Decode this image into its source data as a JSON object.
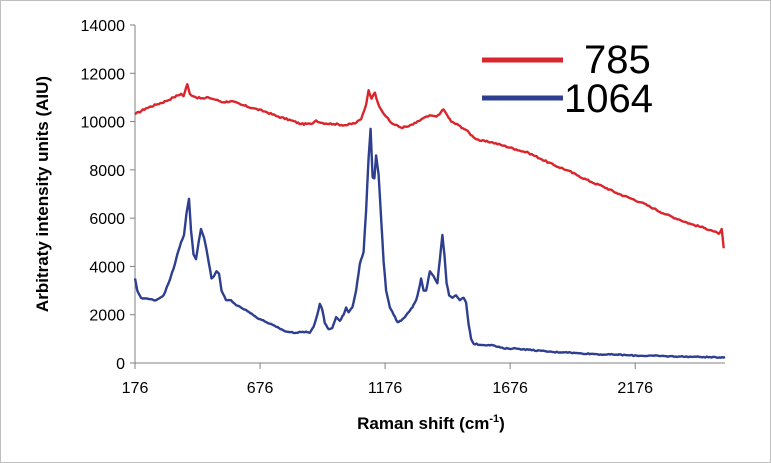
{
  "chart_data": {
    "type": "line",
    "xlabel": "Raman shift (cm",
    "xlabel_sup": "-1",
    "xlabel_suffix": ")",
    "ylabel": "Arbitraty intensity units (AIU)",
    "xlim": [
      176,
      2535
    ],
    "ylim": [
      0,
      14000
    ],
    "x_ticks": [
      176,
      676,
      1176,
      1676,
      2176
    ],
    "y_ticks": [
      0,
      2000,
      4000,
      6000,
      8000,
      10000,
      12000,
      14000
    ],
    "legend_position": "top-right",
    "series": [
      {
        "name": "785",
        "color": "#d9262c",
        "points": [
          [
            176,
            10300
          ],
          [
            220,
            10550
          ],
          [
            260,
            10700
          ],
          [
            300,
            10850
          ],
          [
            330,
            11000
          ],
          [
            360,
            11150
          ],
          [
            370,
            11050
          ],
          [
            385,
            11550
          ],
          [
            395,
            11150
          ],
          [
            420,
            11000
          ],
          [
            450,
            10950
          ],
          [
            470,
            11000
          ],
          [
            500,
            10900
          ],
          [
            530,
            10800
          ],
          [
            560,
            10850
          ],
          [
            600,
            10700
          ],
          [
            650,
            10550
          ],
          [
            700,
            10400
          ],
          [
            750,
            10200
          ],
          [
            800,
            10050
          ],
          [
            840,
            9900
          ],
          [
            880,
            9900
          ],
          [
            900,
            10050
          ],
          [
            920,
            9950
          ],
          [
            970,
            9900
          ],
          [
            1020,
            9850
          ],
          [
            1060,
            9950
          ],
          [
            1080,
            10100
          ],
          [
            1100,
            10700
          ],
          [
            1110,
            11300
          ],
          [
            1122,
            10950
          ],
          [
            1135,
            11200
          ],
          [
            1148,
            10750
          ],
          [
            1160,
            10500
          ],
          [
            1180,
            10200
          ],
          [
            1200,
            9950
          ],
          [
            1240,
            9750
          ],
          [
            1270,
            9800
          ],
          [
            1300,
            9950
          ],
          [
            1330,
            10150
          ],
          [
            1360,
            10250
          ],
          [
            1380,
            10200
          ],
          [
            1400,
            10400
          ],
          [
            1410,
            10500
          ],
          [
            1425,
            10250
          ],
          [
            1440,
            10000
          ],
          [
            1470,
            9850
          ],
          [
            1500,
            9650
          ],
          [
            1530,
            9350
          ],
          [
            1560,
            9200
          ],
          [
            1600,
            9150
          ],
          [
            1650,
            9000
          ],
          [
            1700,
            8850
          ],
          [
            1750,
            8700
          ],
          [
            1800,
            8450
          ],
          [
            1850,
            8200
          ],
          [
            1900,
            8000
          ],
          [
            1950,
            7750
          ],
          [
            2000,
            7500
          ],
          [
            2050,
            7300
          ],
          [
            2100,
            7050
          ],
          [
            2150,
            6850
          ],
          [
            2200,
            6650
          ],
          [
            2250,
            6400
          ],
          [
            2300,
            6150
          ],
          [
            2350,
            5950
          ],
          [
            2400,
            5750
          ],
          [
            2450,
            5600
          ],
          [
            2480,
            5500
          ],
          [
            2510,
            5350
          ],
          [
            2522,
            5550
          ],
          [
            2530,
            4750
          ]
        ]
      },
      {
        "name": "1064",
        "color": "#2e3f8f",
        "points": [
          [
            176,
            3500
          ],
          [
            185,
            3000
          ],
          [
            200,
            2700
          ],
          [
            230,
            2650
          ],
          [
            260,
            2600
          ],
          [
            290,
            2800
          ],
          [
            310,
            3300
          ],
          [
            330,
            3900
          ],
          [
            345,
            4500
          ],
          [
            360,
            5000
          ],
          [
            372,
            5300
          ],
          [
            382,
            6200
          ],
          [
            392,
            6800
          ],
          [
            400,
            5500
          ],
          [
            410,
            4500
          ],
          [
            420,
            4300
          ],
          [
            432,
            5100
          ],
          [
            440,
            5550
          ],
          [
            452,
            5200
          ],
          [
            462,
            4700
          ],
          [
            472,
            4100
          ],
          [
            482,
            3500
          ],
          [
            492,
            3600
          ],
          [
            502,
            3800
          ],
          [
            512,
            3700
          ],
          [
            522,
            3000
          ],
          [
            540,
            2600
          ],
          [
            560,
            2600
          ],
          [
            580,
            2400
          ],
          [
            600,
            2300
          ],
          [
            620,
            2200
          ],
          [
            660,
            1900
          ],
          [
            700,
            1700
          ],
          [
            740,
            1500
          ],
          [
            780,
            1300
          ],
          [
            820,
            1250
          ],
          [
            840,
            1280
          ],
          [
            860,
            1300
          ],
          [
            875,
            1250
          ],
          [
            890,
            1500
          ],
          [
            905,
            2000
          ],
          [
            915,
            2450
          ],
          [
            925,
            2200
          ],
          [
            935,
            1650
          ],
          [
            950,
            1400
          ],
          [
            965,
            1450
          ],
          [
            980,
            1900
          ],
          [
            995,
            1750
          ],
          [
            1010,
            2000
          ],
          [
            1020,
            2300
          ],
          [
            1030,
            2100
          ],
          [
            1045,
            2300
          ],
          [
            1060,
            3000
          ],
          [
            1075,
            4100
          ],
          [
            1090,
            4600
          ],
          [
            1100,
            6300
          ],
          [
            1110,
            8500
          ],
          [
            1118,
            9700
          ],
          [
            1126,
            7700
          ],
          [
            1133,
            7650
          ],
          [
            1140,
            8600
          ],
          [
            1150,
            7800
          ],
          [
            1160,
            6000
          ],
          [
            1170,
            4200
          ],
          [
            1180,
            3000
          ],
          [
            1195,
            2300
          ],
          [
            1210,
            2000
          ],
          [
            1225,
            1700
          ],
          [
            1240,
            1750
          ],
          [
            1255,
            1900
          ],
          [
            1270,
            2100
          ],
          [
            1285,
            2300
          ],
          [
            1300,
            2600
          ],
          [
            1310,
            3000
          ],
          [
            1320,
            3500
          ],
          [
            1330,
            3000
          ],
          [
            1340,
            3000
          ],
          [
            1355,
            3800
          ],
          [
            1370,
            3600
          ],
          [
            1385,
            3300
          ],
          [
            1395,
            4300
          ],
          [
            1405,
            5300
          ],
          [
            1413,
            4500
          ],
          [
            1422,
            3300
          ],
          [
            1432,
            2800
          ],
          [
            1445,
            2700
          ],
          [
            1460,
            2800
          ],
          [
            1475,
            2600
          ],
          [
            1490,
            2700
          ],
          [
            1500,
            2500
          ],
          [
            1510,
            1600
          ],
          [
            1520,
            1000
          ],
          [
            1530,
            800
          ],
          [
            1560,
            750
          ],
          [
            1600,
            750
          ],
          [
            1650,
            600
          ],
          [
            1700,
            600
          ],
          [
            1750,
            550
          ],
          [
            1800,
            500
          ],
          [
            1850,
            450
          ],
          [
            1900,
            450
          ],
          [
            1950,
            400
          ],
          [
            2000,
            380
          ],
          [
            2050,
            350
          ],
          [
            2100,
            350
          ],
          [
            2150,
            320
          ],
          [
            2200,
            300
          ],
          [
            2250,
            300
          ],
          [
            2300,
            280
          ],
          [
            2350,
            270
          ],
          [
            2400,
            260
          ],
          [
            2450,
            250
          ],
          [
            2500,
            230
          ],
          [
            2535,
            250
          ]
        ]
      }
    ]
  }
}
